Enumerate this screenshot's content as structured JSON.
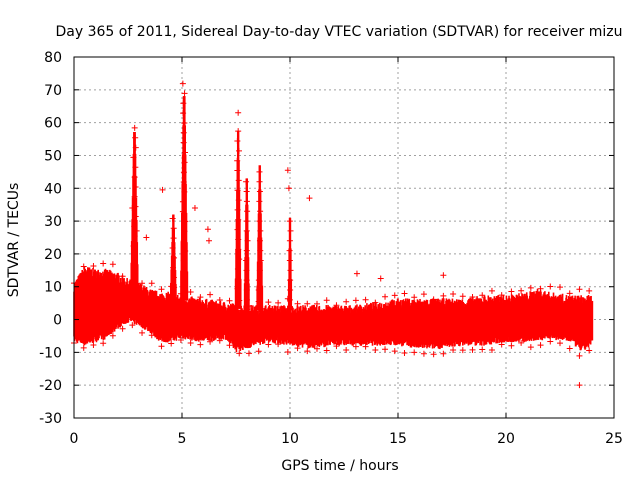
{
  "chart_data": {
    "type": "scatter",
    "title": "Day 365 of 2011, Sidereal Day-to-day VTEC variation (SDTVAR) for receiver mizu",
    "xlabel": "GPS time / hours",
    "ylabel": "SDTVAR / TECUs",
    "xlim": [
      0,
      25
    ],
    "ylim": [
      -30,
      80
    ],
    "x_ticks": [
      0,
      5,
      10,
      15,
      20,
      25
    ],
    "y_ticks": [
      -30,
      -20,
      -10,
      0,
      10,
      20,
      30,
      40,
      50,
      60,
      70,
      80
    ],
    "grid": true,
    "legend": "none",
    "marker": "+",
    "series": [
      {
        "name": "SDTVAR",
        "color": "#ff0000",
        "band_upper": [
          [
            0,
            10
          ],
          [
            0.5,
            15
          ],
          [
            1,
            14
          ],
          [
            1.5,
            14
          ],
          [
            2,
            13
          ],
          [
            2.5,
            11
          ],
          [
            3,
            10
          ],
          [
            3.5,
            8
          ],
          [
            4,
            7
          ],
          [
            4.5,
            7
          ],
          [
            5,
            6
          ],
          [
            6,
            5
          ],
          [
            7,
            4
          ],
          [
            8,
            3
          ],
          [
            9,
            3
          ],
          [
            10,
            3
          ],
          [
            11,
            3
          ],
          [
            12,
            3
          ],
          [
            13,
            3
          ],
          [
            14,
            4
          ],
          [
            15,
            5
          ],
          [
            16,
            5
          ],
          [
            17,
            5
          ],
          [
            18,
            5
          ],
          [
            19,
            6
          ],
          [
            20,
            6
          ],
          [
            21,
            7
          ],
          [
            21.5,
            8
          ],
          [
            22,
            7
          ],
          [
            23,
            6
          ],
          [
            24,
            6
          ]
        ],
        "band_lower": [
          [
            0,
            -6
          ],
          [
            0.5,
            -7
          ],
          [
            1,
            -6
          ],
          [
            1.5,
            -5
          ],
          [
            2,
            -2
          ],
          [
            2.5,
            0
          ],
          [
            3,
            -1
          ],
          [
            3.5,
            -3
          ],
          [
            4,
            -6
          ],
          [
            4.5,
            -6
          ],
          [
            5,
            -5
          ],
          [
            6,
            -6
          ],
          [
            7,
            -5
          ],
          [
            7.5,
            -9
          ],
          [
            8,
            -8
          ],
          [
            9,
            -6
          ],
          [
            10,
            -7
          ],
          [
            11,
            -8
          ],
          [
            12,
            -7
          ],
          [
            13,
            -7
          ],
          [
            14,
            -7
          ],
          [
            15,
            -7
          ],
          [
            16,
            -8
          ],
          [
            17,
            -8
          ],
          [
            18,
            -7
          ],
          [
            19,
            -7
          ],
          [
            20,
            -6
          ],
          [
            21,
            -6
          ],
          [
            22,
            -5
          ],
          [
            23,
            -6
          ],
          [
            23.5,
            -9
          ],
          [
            24,
            -7
          ]
        ],
        "peaks": [
          {
            "x": 2.8,
            "y": 60.5,
            "width": 0.15
          },
          {
            "x": 4.6,
            "y": 32,
            "width": 0.12
          },
          {
            "x": 5.1,
            "y": 72.5,
            "width": 0.15
          },
          {
            "x": 7.6,
            "y": 57.5,
            "width": 0.12
          },
          {
            "x": 8.0,
            "y": 43,
            "width": 0.1
          },
          {
            "x": 8.6,
            "y": 47,
            "width": 0.12
          },
          {
            "x": 10.0,
            "y": 31,
            "width": 0.06
          }
        ],
        "outliers": [
          {
            "x": 2.7,
            "y": 34
          },
          {
            "x": 2.9,
            "y": 27
          },
          {
            "x": 4.1,
            "y": 39.5
          },
          {
            "x": 3.35,
            "y": 25
          },
          {
            "x": 5.6,
            "y": 34
          },
          {
            "x": 6.2,
            "y": 27.5
          },
          {
            "x": 6.25,
            "y": 24
          },
          {
            "x": 7.6,
            "y": 63
          },
          {
            "x": 9.9,
            "y": 45.5
          },
          {
            "x": 9.95,
            "y": 40
          },
          {
            "x": 10.9,
            "y": 37
          },
          {
            "x": 13.1,
            "y": 14
          },
          {
            "x": 14.2,
            "y": 12.5
          },
          {
            "x": 17.1,
            "y": 13.5
          },
          {
            "x": 23.4,
            "y": -20
          }
        ]
      }
    ]
  }
}
